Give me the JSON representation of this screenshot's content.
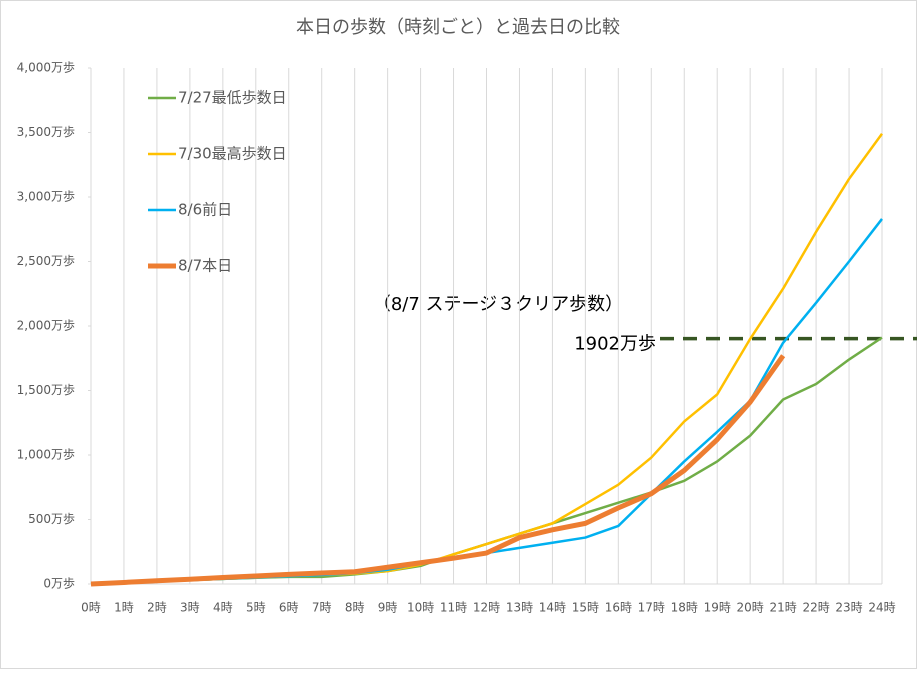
{
  "chart_data": {
    "type": "line",
    "title": "本日の歩数（時刻ごと）と過去日の比較",
    "categories": [
      "0時",
      "1時",
      "2時",
      "3時",
      "4時",
      "5時",
      "6時",
      "7時",
      "8時",
      "9時",
      "10時",
      "11時",
      "12時",
      "13時",
      "14時",
      "15時",
      "16時",
      "17時",
      "18時",
      "19時",
      "20時",
      "21時",
      "22時",
      "23時",
      "24時"
    ],
    "series": [
      {
        "name": "7/27最低歩数日",
        "color": "#70ad47",
        "line_width": 2.5,
        "values": [
          0,
          10,
          20,
          30,
          40,
          48,
          55,
          55,
          75,
          100,
          140,
          230,
          310,
          390,
          470,
          550,
          630,
          710,
          800,
          950,
          1150,
          1430,
          1550,
          1740,
          1910
        ]
      },
      {
        "name": "7/30最高歩数日",
        "color": "#ffc000",
        "line_width": 2.5,
        "values": [
          0,
          10,
          20,
          30,
          40,
          50,
          60,
          70,
          80,
          100,
          150,
          230,
          310,
          390,
          470,
          620,
          770,
          980,
          1260,
          1470,
          1900,
          2290,
          2730,
          3140,
          3490
        ]
      },
      {
        "name": "8/6前日",
        "color": "#00b0f0",
        "line_width": 2.5,
        "values": [
          0,
          10,
          20,
          30,
          40,
          50,
          60,
          70,
          85,
          110,
          160,
          200,
          240,
          280,
          320,
          360,
          450,
          700,
          950,
          1180,
          1420,
          1870,
          2180,
          2500,
          2830
        ]
      },
      {
        "name": "8/7本日",
        "color": "#ed7d31",
        "line_width": 5,
        "values": [
          0,
          12,
          25,
          37,
          50,
          62,
          75,
          85,
          95,
          130,
          165,
          200,
          240,
          360,
          420,
          470,
          590,
          700,
          880,
          1120,
          1410,
          1770,
          null,
          null,
          null
        ]
      }
    ],
    "ylim": [
      0,
      4000
    ],
    "yticks": [
      {
        "value": 0,
        "label": "0万歩"
      },
      {
        "value": 500,
        "label": "500万歩"
      },
      {
        "value": 1000,
        "label": "1,000万歩"
      },
      {
        "value": 1500,
        "label": "1,500万歩"
      },
      {
        "value": 2000,
        "label": "2,000万歩"
      },
      {
        "value": 2500,
        "label": "2,500万歩"
      },
      {
        "value": 3000,
        "label": "3,000万歩"
      },
      {
        "value": 3500,
        "label": "3,500万歩"
      },
      {
        "value": 4000,
        "label": "4,000万歩"
      }
    ],
    "grid": "x",
    "legend": "upper left",
    "annotation": "（8/7 ステージ３クリア歩数）",
    "target": {
      "value": 1902,
      "label": "1902万歩",
      "color": "#375623"
    }
  }
}
